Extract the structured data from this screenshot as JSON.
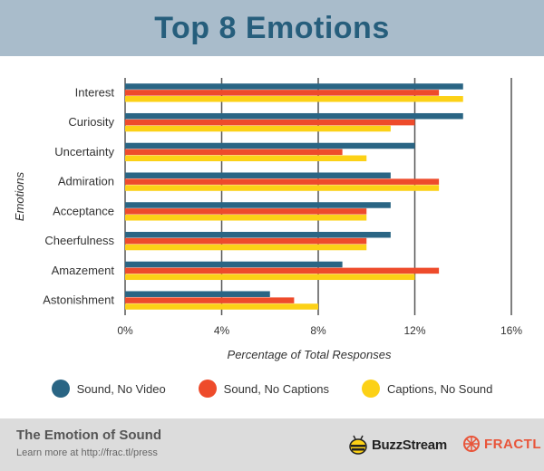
{
  "header": {
    "title": "Top 8 Emotions"
  },
  "chart_data": {
    "type": "bar",
    "orientation": "horizontal",
    "title": "Top 8 Emotions",
    "xlabel": "Percentage of Total Responses",
    "ylabel": "Emotions",
    "xlim": [
      0,
      16
    ],
    "x_ticks": [
      "0%",
      "4%",
      "8%",
      "12%",
      "16%"
    ],
    "grid": "vertical",
    "legend_position": "bottom",
    "categories": [
      "Interest",
      "Curiosity",
      "Uncertainty",
      "Admiration",
      "Acceptance",
      "Cheerfulness",
      "Amazement",
      "Astonishment"
    ],
    "series": [
      {
        "name": "Sound, No Video",
        "color": "#2a6584",
        "values": [
          14,
          14,
          12,
          11,
          11,
          11,
          9,
          6
        ]
      },
      {
        "name": "Sound, No Captions",
        "color": "#ee4b2b",
        "values": [
          13,
          12,
          9,
          13,
          10,
          10,
          13,
          7
        ]
      },
      {
        "name": "Captions, No Sound",
        "color": "#fcd116",
        "values": [
          14,
          11,
          10,
          13,
          10,
          10,
          12,
          8
        ]
      }
    ]
  },
  "footer": {
    "title": "The Emotion of Sound",
    "subtitle": "Learn more at http://frac.tl/press",
    "logo_buzzstream": "BuzzStream",
    "logo_fractl": "FRACTL"
  }
}
